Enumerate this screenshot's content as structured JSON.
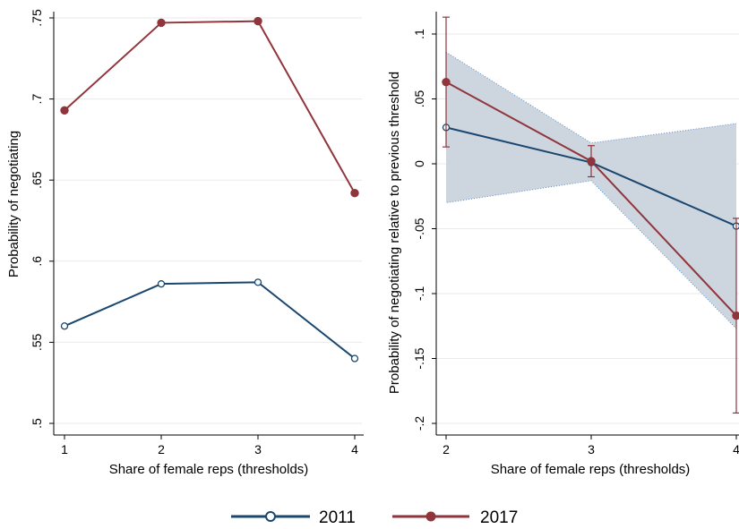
{
  "legend": {
    "placement": "bottom-center",
    "items": [
      {
        "label": "2011",
        "color": "#1a476f",
        "marker": "hollow-circle"
      },
      {
        "label": "2017",
        "color": "#90353b",
        "marker": "filled-circle"
      }
    ]
  },
  "chart_data": [
    {
      "type": "line",
      "xlabel": "Share of female reps (thresholds)",
      "ylabel": "Probability of negotiating",
      "ylim": [
        0.5,
        0.75
      ],
      "xlim": [
        1,
        4
      ],
      "x_ticks": [
        "1",
        "2",
        "3",
        "4"
      ],
      "y_ticks": [
        ".5",
        ".55",
        ".6",
        ".65",
        ".7",
        ".75"
      ],
      "grid": true,
      "x": [
        1,
        2,
        3,
        4
      ],
      "series": [
        {
          "name": "2011",
          "color": "#1a476f",
          "values": [
            0.56,
            0.586,
            0.587,
            0.54
          ]
        },
        {
          "name": "2017",
          "color": "#90353b",
          "values": [
            0.693,
            0.747,
            0.748,
            0.642
          ]
        }
      ]
    },
    {
      "type": "line",
      "xlabel": "Share of female reps (thresholds)",
      "ylabel": "Probability of negotiating relative to previous threshold",
      "ylim": [
        -0.2,
        0.1
      ],
      "xlim": [
        2,
        4
      ],
      "x_ticks": [
        "2",
        "3",
        "4"
      ],
      "y_ticks": [
        "-.2",
        "-.15",
        "-.1",
        "-.05",
        "0",
        ".05",
        ".1"
      ],
      "grid": true,
      "x": [
        2,
        3,
        4
      ],
      "series": [
        {
          "name": "2011",
          "color": "#1a476f",
          "values": [
            0.028,
            0.001,
            -0.048
          ],
          "ci_band": {
            "lower": [
              -0.03,
              -0.013,
              -0.127
            ],
            "upper": [
              0.086,
              0.016,
              0.031
            ],
            "fill": "#cdd5df"
          }
        },
        {
          "name": "2017",
          "color": "#90353b",
          "values": [
            0.063,
            0.002,
            -0.117
          ],
          "error_bars": {
            "lower": [
              0.013,
              -0.01,
              -0.192
            ],
            "upper": [
              0.113,
              0.014,
              -0.042
            ]
          }
        }
      ]
    }
  ]
}
